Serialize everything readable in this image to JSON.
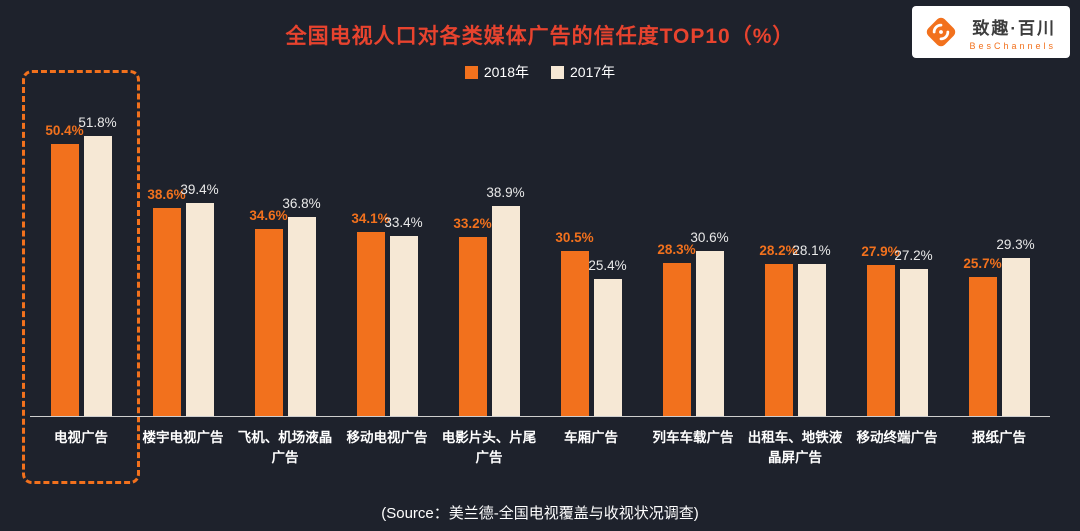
{
  "colors": {
    "background": "#1e222c",
    "title": "#e8432e",
    "series_2018": "#f2711d",
    "series_2017": "#f6e8d5",
    "value_label_2017": "#e9e9e9",
    "category_label": "#ffffff",
    "baseline": "#cfcfcf",
    "highlight_border": "#f2711d"
  },
  "header": {
    "title": "全国电视人口对各类媒体广告的信任度TOP10（%）"
  },
  "logo": {
    "name": "致趣·百川",
    "subtitle": "BesChannels"
  },
  "footer": {
    "source": "(Source：美兰德-全国电视覆盖与收视状况调查)"
  },
  "chart_data": {
    "type": "bar",
    "title": "全国电视人口对各类媒体广告的信任度TOP10（%）",
    "categories": [
      "电视广告",
      "楼宇电视广告",
      "飞机、机场液晶\n广告",
      "移动电视广告",
      "电影片头、片尾\n广告",
      "车厢广告",
      "列车车载广告",
      "出租车、地铁液\n晶屏广告",
      "移动终端广告",
      "报纸广告"
    ],
    "series": [
      {
        "name": "2018年",
        "values": [
          50.4,
          38.6,
          34.6,
          34.1,
          33.2,
          30.5,
          28.3,
          28.2,
          27.9,
          25.7
        ]
      },
      {
        "name": "2017年",
        "values": [
          51.8,
          39.4,
          36.8,
          33.4,
          38.9,
          25.4,
          30.6,
          28.1,
          27.2,
          29.3
        ]
      }
    ],
    "unit": "%",
    "ylim": [
      0,
      55
    ],
    "grid": false,
    "legend_position": "top",
    "highlighted_category": "电视广告"
  }
}
